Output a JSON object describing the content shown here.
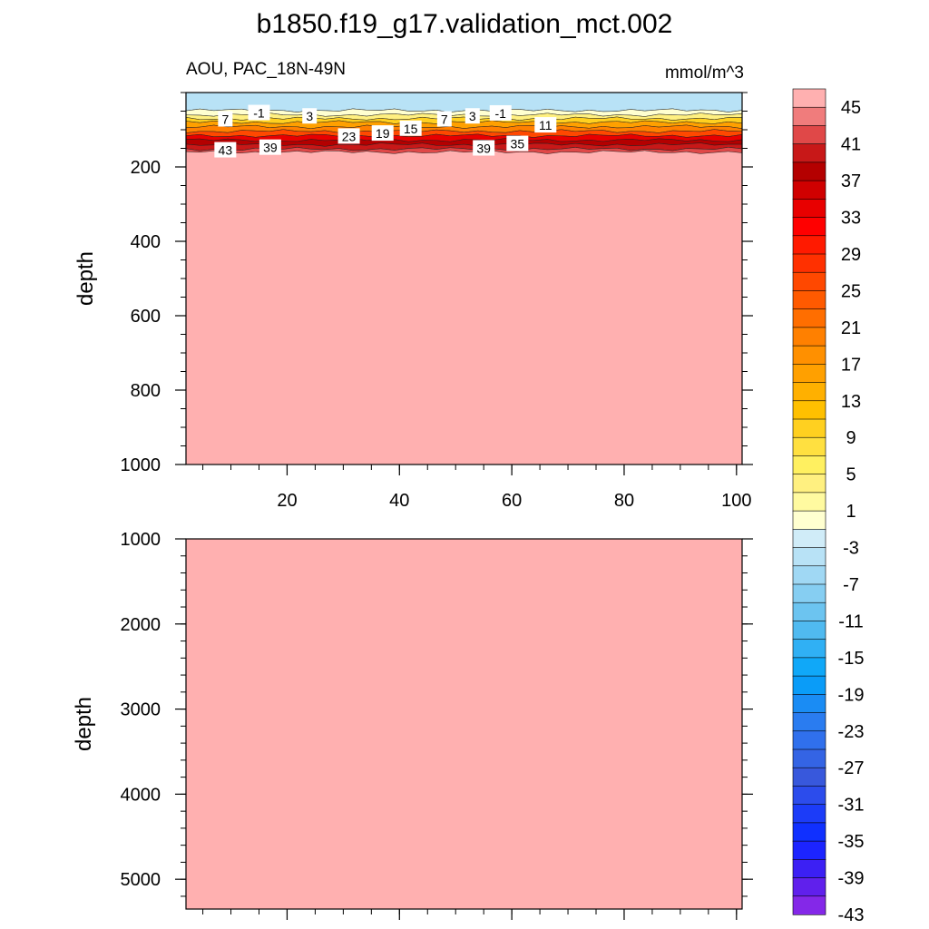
{
  "title": "b1850.f19_g17.validation_mct.002",
  "chart_data": [
    {
      "type": "heatmap",
      "panel": "upper",
      "subtitle_left": "AOU, PAC_18N-49N",
      "subtitle_right": "mmol/m^3",
      "ylabel": "depth",
      "xlabel": "",
      "xlim": [
        2,
        101
      ],
      "ylim": [
        1000,
        0
      ],
      "y_reversed": true,
      "xticks": [
        20,
        40,
        60,
        80,
        100
      ],
      "yticks": [
        200,
        400,
        600,
        800,
        1000
      ],
      "contour_labels": [
        {
          "text": "7",
          "x": 9,
          "y": 72
        },
        {
          "text": "-1",
          "x": 15,
          "y": 55
        },
        {
          "text": "3",
          "x": 24,
          "y": 64
        },
        {
          "text": "43",
          "x": 9,
          "y": 155
        },
        {
          "text": "39",
          "x": 17,
          "y": 148
        },
        {
          "text": "23",
          "x": 31,
          "y": 118
        },
        {
          "text": "19",
          "x": 37,
          "y": 110
        },
        {
          "text": "15",
          "x": 42,
          "y": 97
        },
        {
          "text": "7",
          "x": 48,
          "y": 72
        },
        {
          "text": "3",
          "x": 53,
          "y": 64
        },
        {
          "text": "-1",
          "x": 58,
          "y": 56
        },
        {
          "text": "11",
          "x": 66,
          "y": 88
        },
        {
          "text": "39",
          "x": 55,
          "y": 150
        },
        {
          "text": "35",
          "x": 61,
          "y": 138
        }
      ]
    },
    {
      "type": "heatmap",
      "panel": "lower",
      "ylabel": "depth",
      "xlabel": "",
      "xlim": [
        2,
        101
      ],
      "ylim": [
        5350,
        1000
      ],
      "y_reversed": true,
      "xticks": [
        20,
        40,
        60,
        80,
        100
      ],
      "yticks": [
        1000,
        2000,
        3000,
        4000,
        5000
      ],
      "fill_value_level": "above 47",
      "fill_color": "#ffb0b0"
    }
  ],
  "colorbar": {
    "labels": [
      "45",
      "41",
      "37",
      "33",
      "29",
      "25",
      "21",
      "17",
      "13",
      "9",
      "5",
      "1",
      "-3",
      "-7",
      "-11",
      "-15",
      "-19",
      "-23",
      "-27",
      "-31",
      "-35",
      "-39",
      "-43"
    ],
    "colors": [
      "#ffb0b0",
      "#f07c7c",
      "#e04848",
      "#c81818",
      "#b40000",
      "#d00000",
      "#e80000",
      "#ff0000",
      "#ff1a00",
      "#ff3000",
      "#ff4800",
      "#ff5a00",
      "#ff6e00",
      "#ff8000",
      "#ff9000",
      "#ffa000",
      "#ffb000",
      "#ffc000",
      "#ffd020",
      "#ffe040",
      "#fff060",
      "#fff080",
      "#fffaa0",
      "#ffffd0",
      "#d0ecf8",
      "#b8e2f6",
      "#a0d8f4",
      "#86cef2",
      "#6cc4f0",
      "#50baf0",
      "#30b0f4",
      "#10a8f8",
      "#0a9cf8",
      "#1a8cf4",
      "#2a7cf0",
      "#3070ec",
      "#3464e4",
      "#3858dc",
      "#2c4cec",
      "#1c3cf8",
      "#1030ff",
      "#1c24ff",
      "#3c20f4",
      "#6020ec",
      "#8428e8"
    ]
  }
}
